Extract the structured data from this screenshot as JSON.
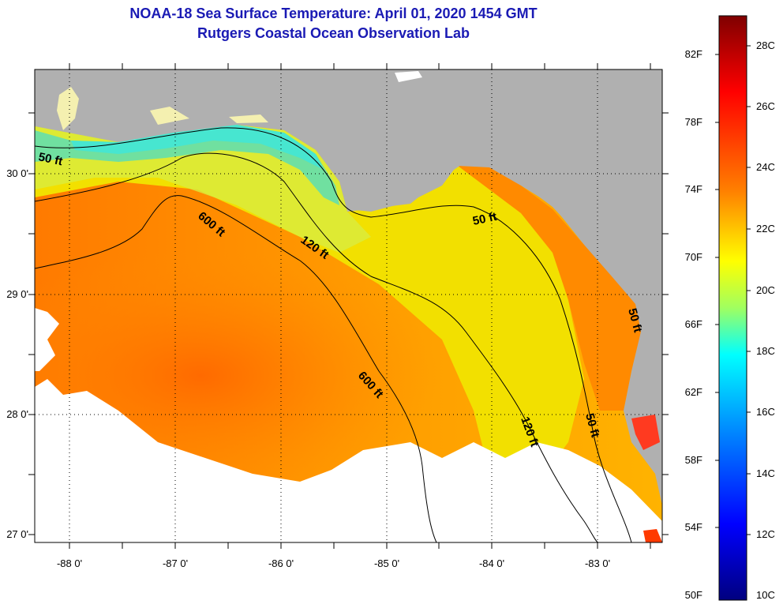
{
  "header": {
    "title": "NOAA-18 Sea Surface Temperature:  April 01, 2020 1454 GMT",
    "subtitle": "Rutgers Coastal Ocean Observation Lab"
  },
  "map": {
    "region": "Northeastern Gulf of Mexico / West Florida Shelf",
    "lat_ticks": [
      "30 0'",
      "29 0'",
      "28 0'",
      "27 0'"
    ],
    "lon_ticks": [
      "-88 0'",
      "-87 0'",
      "-86 0'",
      "-85 0'",
      "-84 0'",
      "-83 0'"
    ],
    "contour_labels": [
      "50 ft",
      "600 ft",
      "120 ft",
      "50 ft",
      "600 ft",
      "120 ft",
      "50 ft",
      "50 ft"
    ]
  },
  "colorbar": {
    "fahrenheit": [
      "82F",
      "78F",
      "74F",
      "70F",
      "66F",
      "62F",
      "58F",
      "54F",
      "50F"
    ],
    "celsius": [
      "28C",
      "26C",
      "24C",
      "22C",
      "20C",
      "18C",
      "16C",
      "14C",
      "12C",
      "10C"
    ],
    "colors": [
      "#7f0000",
      "#ff0000",
      "#ff8000",
      "#ffff00",
      "#80ff80",
      "#00ffff",
      "#0080ff",
      "#0000ff",
      "#00007f"
    ]
  }
}
